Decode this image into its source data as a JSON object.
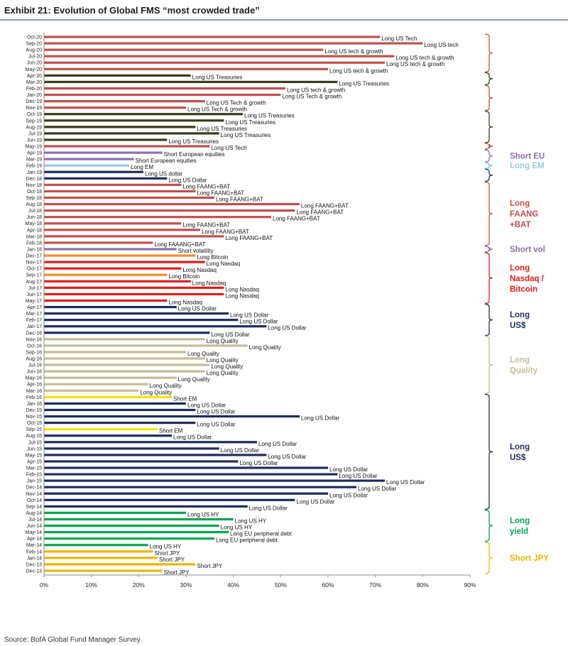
{
  "chart_data": {
    "type": "bar",
    "orientation": "horizontal",
    "title": "Exhibit 21: Evolution of Global FMS “most crowded trade”",
    "source": "Source: BofA Global Fund Manager Survey",
    "xlim": [
      0,
      90
    ],
    "xticks": [
      "0%",
      "10%",
      "20%",
      "30%",
      "40%",
      "50%",
      "60%",
      "70%",
      "80%",
      "90%"
    ],
    "grid": false,
    "colors": {
      "tech": "#c0504d",
      "treas": "#3a3a1c",
      "eu": "#8d6fb0",
      "em": "#92cddc",
      "usd": "#1f2d5a",
      "nasdaq": "#e31b1b",
      "btc": "#f28c28",
      "quality": "#c4bd97",
      "emshort": "#f5e400",
      "hy": "#00a650",
      "jpy": "#f0b400",
      "accent": "#1f4e79"
    },
    "bars": [
      {
        "month": "Oct-20",
        "value": 71,
        "label": "Long US Tech",
        "cat": "tech"
      },
      {
        "month": "Sep-20",
        "value": 80,
        "label": "Long US tech",
        "cat": "tech"
      },
      {
        "month": "Aug-20",
        "value": 59,
        "label": "Long US tech & growth",
        "cat": "tech"
      },
      {
        "month": "Jul-20",
        "value": 74,
        "label": "Long US tech & growth",
        "cat": "tech"
      },
      {
        "month": "Jun-20",
        "value": 72,
        "label": "Long US tech & growth",
        "cat": "tech"
      },
      {
        "month": "May-20",
        "value": 60,
        "label": "Long US tech & growth",
        "cat": "tech"
      },
      {
        "month": "Apr-20",
        "value": 31,
        "label": "Long US Treasuries",
        "cat": "treas"
      },
      {
        "month": "Mar-20",
        "value": 62,
        "label": "Long US Treasuries",
        "cat": "treas"
      },
      {
        "month": "Feb-20",
        "value": 51,
        "label": "Long US tech & growth",
        "cat": "tech"
      },
      {
        "month": "Jan-20",
        "value": 50,
        "label": "Long US Tech & growth",
        "cat": "tech"
      },
      {
        "month": "Dec-19",
        "value": 34,
        "label": "Long US Tech & growth",
        "cat": "tech"
      },
      {
        "month": "Nov-19",
        "value": 30,
        "label": "Long US Tech & growth",
        "cat": "tech"
      },
      {
        "month": "Oct-19",
        "value": 42,
        "label": "Long US Treasuries",
        "cat": "treas"
      },
      {
        "month": "Sep-19",
        "value": 38,
        "label": "Long US Treasuries",
        "cat": "treas"
      },
      {
        "month": "Aug-19",
        "value": 32,
        "label": "Long US Treasuries",
        "cat": "treas"
      },
      {
        "month": "Jul-19",
        "value": 37,
        "label": "Long US Treasuries",
        "cat": "treas"
      },
      {
        "month": "Jun-19",
        "value": 26,
        "label": "Long US Treasuries",
        "cat": "treas"
      },
      {
        "month": "May-19",
        "value": 35,
        "label": "Long US Tech",
        "cat": "tech"
      },
      {
        "month": "Apr-19",
        "value": 25,
        "label": "Short European equities",
        "cat": "eu"
      },
      {
        "month": "Mar-19",
        "value": 19,
        "label": "Short European equities",
        "cat": "eu"
      },
      {
        "month": "Feb-19",
        "value": 18,
        "label": "Long EM",
        "cat": "em"
      },
      {
        "month": "Jan-19",
        "value": 21,
        "label": "Long US dollar",
        "cat": "usd"
      },
      {
        "month": "Dec-18",
        "value": 26,
        "label": "Long US Dollar",
        "cat": "usd"
      },
      {
        "month": "Nov-18",
        "value": 29,
        "label": "Long FAANG+BAT",
        "cat": "tech"
      },
      {
        "month": "Oct-18",
        "value": 32,
        "label": "Long FAANG+BAT",
        "cat": "tech"
      },
      {
        "month": "Sep-18",
        "value": 36,
        "label": "Long FAANG+BAT",
        "cat": "tech"
      },
      {
        "month": "Aug-18",
        "value": 54,
        "label": "Long FAANG+BAT",
        "cat": "tech"
      },
      {
        "month": "Jul-18",
        "value": 53,
        "label": "Long FAANG+BAT",
        "cat": "tech"
      },
      {
        "month": "Jun-18",
        "value": 48,
        "label": "Long FAANG+BAT",
        "cat": "tech"
      },
      {
        "month": "May-18",
        "value": 29,
        "label": "Long FAANG+BAT",
        "cat": "tech"
      },
      {
        "month": "Apr-18",
        "value": 33,
        "label": "Long FAANG+BAT",
        "cat": "tech"
      },
      {
        "month": "Mar-18",
        "value": 38,
        "label": "Long FAANG+BAT",
        "cat": "tech"
      },
      {
        "month": "Feb-18",
        "value": 23,
        "label": "Long FAAANG+BAT",
        "cat": "tech"
      },
      {
        "month": "Jan-18",
        "value": 28,
        "label": "Short volatility",
        "cat": "eu"
      },
      {
        "month": "Dec-17",
        "value": 32,
        "label": "Long Bitcoin",
        "cat": "btc"
      },
      {
        "month": "Nov-17",
        "value": 34,
        "label": "Long Nasdaq",
        "cat": "nasdaq"
      },
      {
        "month": "Oct-17",
        "value": 29,
        "label": "Long Nasdaq",
        "cat": "nasdaq"
      },
      {
        "month": "Sep-17",
        "value": 26,
        "label": "Long Bitcoin",
        "cat": "btc"
      },
      {
        "month": "Aug-17",
        "value": 31,
        "label": "Long Nasdaq",
        "cat": "nasdaq"
      },
      {
        "month": "Jul-17",
        "value": 38,
        "label": "Long Nasdaq",
        "cat": "nasdaq"
      },
      {
        "month": "Jun-17",
        "value": 38,
        "label": "Long Nasdaq",
        "cat": "nasdaq"
      },
      {
        "month": "May-17",
        "value": 26,
        "label": "Long Nasdaq",
        "cat": "nasdaq"
      },
      {
        "month": "Apr-17",
        "value": 28,
        "label": "Long US Dollar",
        "cat": "usd"
      },
      {
        "month": "Mar-17",
        "value": 39,
        "label": "Long US Dollar",
        "cat": "usd"
      },
      {
        "month": "Feb-17",
        "value": 41,
        "label": "Long US Dollar",
        "cat": "usd"
      },
      {
        "month": "Jan-17",
        "value": 47,
        "label": "Long US Dollar",
        "cat": "usd"
      },
      {
        "month": "Dec-16",
        "value": 35,
        "label": "Long US Dollar",
        "cat": "usd"
      },
      {
        "month": "Nov-16",
        "value": 34,
        "label": "Long Quality",
        "cat": "quality"
      },
      {
        "month": "Oct-16",
        "value": 43,
        "label": "Long Quality",
        "cat": "quality"
      },
      {
        "month": "Sep-16",
        "value": 30,
        "label": "Long Quality",
        "cat": "quality"
      },
      {
        "month": "Aug-16",
        "value": 34,
        "label": "Long Quality",
        "cat": "quality"
      },
      {
        "month": "Jul-16",
        "value": 35,
        "label": "Long Quality",
        "cat": "quality"
      },
      {
        "month": "Jun-16",
        "value": 34,
        "label": "Long Quality",
        "cat": "quality"
      },
      {
        "month": "May-16",
        "value": 28,
        "label": "Long Quality",
        "cat": "quality"
      },
      {
        "month": "Apr-16",
        "value": 22,
        "label": "Long Quality",
        "cat": "quality"
      },
      {
        "month": "Mar-16",
        "value": 20,
        "label": "Long Quality",
        "cat": "quality"
      },
      {
        "month": "Feb-16",
        "value": 27,
        "label": "Short EM",
        "cat": "emshort"
      },
      {
        "month": "Jan-16",
        "value": 30,
        "label": "Long US Dollar",
        "cat": "usd"
      },
      {
        "month": "Dec-15",
        "value": 32,
        "label": "Long US Dollar",
        "cat": "usd"
      },
      {
        "month": "Nov-15",
        "value": 54,
        "label": "Long US Dollar",
        "cat": "usd"
      },
      {
        "month": "Oct-15",
        "value": 32,
        "label": "Long US Dollar",
        "cat": "usd"
      },
      {
        "month": "Sep-15",
        "value": 24,
        "label": "Short EM",
        "cat": "emshort"
      },
      {
        "month": "Aug-15",
        "value": 27,
        "label": "Long US Dollar",
        "cat": "usd"
      },
      {
        "month": "Jul-15",
        "value": 45,
        "label": "Long US Dollar",
        "cat": "usd"
      },
      {
        "month": "Jun-15",
        "value": 37,
        "label": "Long US Dollar",
        "cat": "usd"
      },
      {
        "month": "May-15",
        "value": 47,
        "label": "Long US Dollar",
        "cat": "usd"
      },
      {
        "month": "Apr-15",
        "value": 41,
        "label": "Long US Dollar",
        "cat": "usd"
      },
      {
        "month": "Mar-15",
        "value": 60,
        "label": "Long US Dollar",
        "cat": "usd"
      },
      {
        "month": "Feb-15",
        "value": 62,
        "label": "Long US Dollar",
        "cat": "usd"
      },
      {
        "month": "Jan-15",
        "value": 72,
        "label": "Long US Dollar",
        "cat": "usd"
      },
      {
        "month": "Dec-14",
        "value": 66,
        "label": "Long US Dollar",
        "cat": "usd"
      },
      {
        "month": "Nov-14",
        "value": 60,
        "label": "Long US Dollar",
        "cat": "usd"
      },
      {
        "month": "Oct-14",
        "value": 53,
        "label": "Long US Dollar",
        "cat": "usd"
      },
      {
        "month": "Sep-14",
        "value": 43,
        "label": "Long US Dollar",
        "cat": "usd"
      },
      {
        "month": "Aug-14",
        "value": 30,
        "label": "Long US HY",
        "cat": "hy"
      },
      {
        "month": "Jul-14",
        "value": 40,
        "label": "Long US HY",
        "cat": "hy"
      },
      {
        "month": "Jun-14",
        "value": 37,
        "label": "Long US HY",
        "cat": "hy"
      },
      {
        "month": "May-14",
        "value": 39,
        "label": "Long EU peripheral debt",
        "cat": "hy"
      },
      {
        "month": "Apr-14",
        "value": 36,
        "label": "Long EU peripheral debt",
        "cat": "hy"
      },
      {
        "month": "Mar-14",
        "value": 22,
        "label": "Long US HY",
        "cat": "hy"
      },
      {
        "month": "Feb-14",
        "value": 23,
        "label": "Short JPY",
        "cat": "jpy"
      },
      {
        "month": "Jan-14",
        "value": 24,
        "label": "Short JPY",
        "cat": "jpy"
      },
      {
        "month": "Dec-13",
        "value": 32,
        "label": "Short JPY",
        "cat": "jpy"
      },
      {
        "month": "Dec-13b",
        "value": 25,
        "label": "Short JPY",
        "cat": "jpy"
      }
    ],
    "groups": [
      {
        "from": 0,
        "to": 5,
        "lines": [],
        "cat": "tech"
      },
      {
        "from": 6,
        "to": 7,
        "lines": [],
        "cat": "treas"
      },
      {
        "from": 8,
        "to": 11,
        "lines": [],
        "cat": "tech"
      },
      {
        "from": 12,
        "to": 16,
        "lines": [],
        "cat": "treas"
      },
      {
        "from": 17,
        "to": 17,
        "lines": [],
        "cat": "tech"
      },
      {
        "from": 18,
        "to": 19,
        "lines": [
          "Short EU"
        ],
        "cat": "eu"
      },
      {
        "from": 20,
        "to": 20,
        "lines": [
          "Long EM"
        ],
        "cat": "em"
      },
      {
        "from": 21,
        "to": 22,
        "lines": [],
        "cat": "usd"
      },
      {
        "from": 23,
        "to": 32,
        "lines": [
          "Long",
          "FAANG",
          "+BAT"
        ],
        "cat": "tech"
      },
      {
        "from": 33,
        "to": 33,
        "lines": [
          "Short vol"
        ],
        "cat": "eu"
      },
      {
        "from": 34,
        "to": 41,
        "lines": [
          "Long",
          "Nasdaq /",
          "Bitcoin"
        ],
        "cat": "nasdaq"
      },
      {
        "from": 42,
        "to": 46,
        "lines": [
          "Long",
          "US$"
        ],
        "cat": "usd"
      },
      {
        "from": 47,
        "to": 55,
        "lines": [
          "Long",
          "Quality"
        ],
        "cat": "quality"
      },
      {
        "from": 56,
        "to": 73,
        "lines": [
          "Long",
          "US$"
        ],
        "cat": "usd"
      },
      {
        "from": 74,
        "to": 78,
        "lines": [
          "Long",
          "yield"
        ],
        "cat": "hy"
      },
      {
        "from": 79,
        "to": 83,
        "lines": [
          "Short JPY"
        ],
        "cat": "jpy"
      }
    ]
  }
}
